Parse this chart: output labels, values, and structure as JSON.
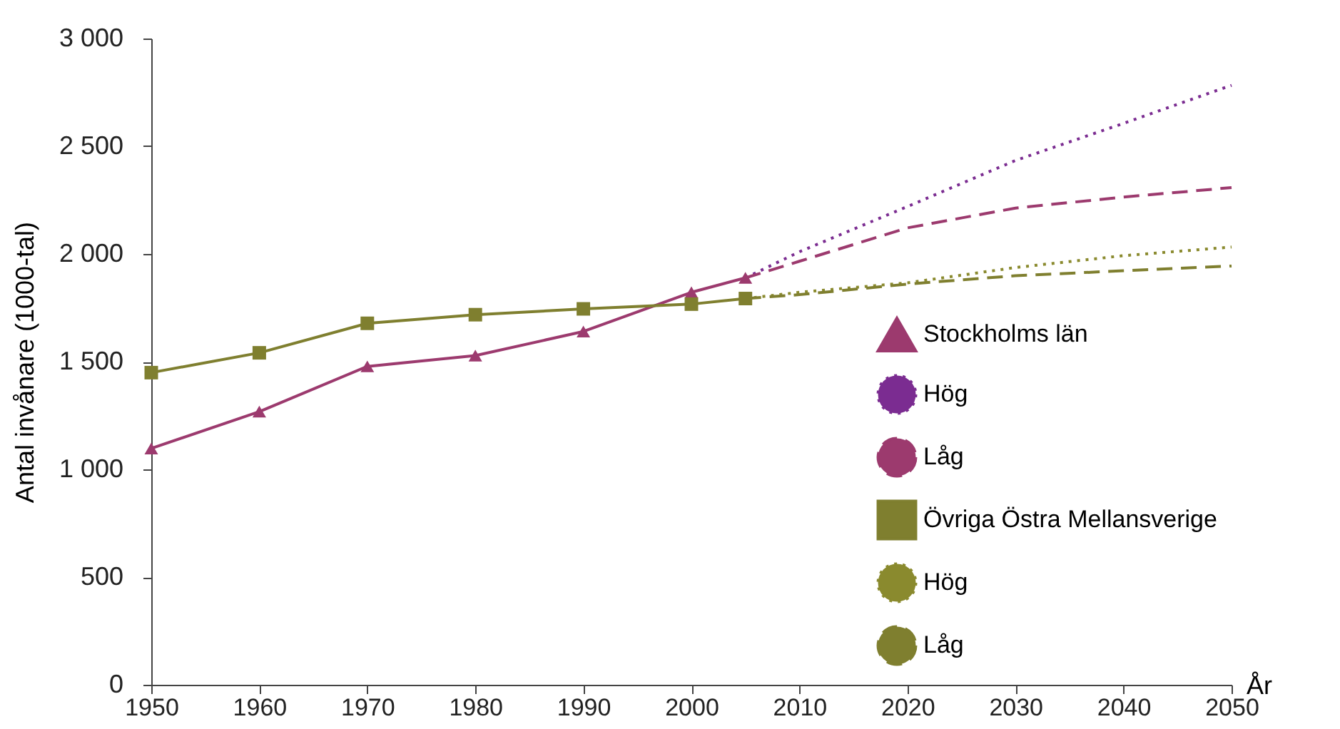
{
  "chart_data": {
    "type": "line",
    "xlabel": "År",
    "ylabel": "Antal invånare (1000-tal)",
    "xlim": [
      1950,
      2050
    ],
    "xticks": [
      1950,
      1960,
      1970,
      1980,
      1990,
      2000,
      2010,
      2020,
      2030,
      2040,
      2050
    ],
    "ylim": [
      0,
      3000
    ],
    "yticks": [
      {
        "value": 0,
        "label": "0"
      },
      {
        "value": 500,
        "label": "500"
      },
      {
        "value": 1000,
        "label": "1 000"
      },
      {
        "value": 1500,
        "label": "1 500"
      },
      {
        "value": 2000,
        "label": "2 000"
      },
      {
        "value": 2500,
        "label": "2 500"
      },
      {
        "value": 3000,
        "label": "3 000"
      }
    ],
    "grid": false,
    "legend": "bottom right",
    "series": [
      {
        "name": "Stockholms län",
        "color": "#9c3a6e",
        "marker": "triangle",
        "line_style": "solid",
        "x": [
          1950,
          1960,
          1970,
          1980,
          1990,
          2000,
          2005
        ],
        "values": [
          1097,
          1268,
          1478,
          1528,
          1640,
          1822,
          1889
        ]
      },
      {
        "name": "Hög",
        "color": "#7b2c91",
        "marker": "none",
        "line_style": "dotted",
        "x": [
          2005,
          2010,
          2020,
          2030,
          2040,
          2050
        ],
        "values": [
          1889,
          2010,
          2220,
          2434,
          2606,
          2783
        ]
      },
      {
        "name": "Låg",
        "color": "#9c3a6e",
        "marker": "none",
        "line_style": "dashed",
        "x": [
          2005,
          2010,
          2020,
          2030,
          2040,
          2050
        ],
        "values": [
          1889,
          1966,
          2121,
          2213,
          2264,
          2308
        ]
      },
      {
        "name": "Övriga Östra Mellansverige",
        "color": "#7f7f2f",
        "marker": "square",
        "line_style": "solid",
        "x": [
          1950,
          1960,
          1970,
          1980,
          1990,
          2000,
          2005
        ],
        "values": [
          1449,
          1541,
          1678,
          1718,
          1745,
          1767,
          1793
        ]
      },
      {
        "name": "Hög",
        "color": "#8a8a2e",
        "marker": "none",
        "line_style": "dotted",
        "x": [
          2005,
          2010,
          2020,
          2030,
          2040,
          2050
        ],
        "values": [
          1793,
          1822,
          1866,
          1937,
          1992,
          2032
        ]
      },
      {
        "name": "Låg",
        "color": "#7f7f2f",
        "marker": "none",
        "line_style": "dashed",
        "x": [
          2005,
          2010,
          2020,
          2030,
          2040,
          2050
        ],
        "values": [
          1793,
          1811,
          1860,
          1899,
          1922,
          1944
        ]
      }
    ]
  }
}
